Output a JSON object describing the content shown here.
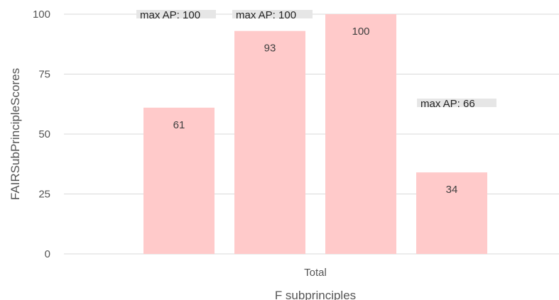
{
  "chart_data": {
    "type": "bar",
    "categories": [
      "Total"
    ],
    "series": [
      {
        "values": [
          61
        ]
      },
      {
        "values": [
          93
        ]
      },
      {
        "values": [
          100
        ]
      },
      {
        "values": [
          34
        ]
      }
    ],
    "bar_value_labels": [
      "61",
      "93",
      "100",
      "34"
    ],
    "annotations": [
      "max AP: 100",
      "max AP: 100",
      "",
      "max AP: 66"
    ],
    "xlabel": "F subprinciples",
    "ylabel": "FAIRSubPrincipleScores",
    "ylim": [
      0,
      100
    ],
    "yticks": [
      0,
      25,
      50,
      75,
      100
    ],
    "grid": true,
    "legend": "none",
    "colors": {
      "bar": "#ffcaca",
      "grid": "#d9d9d9",
      "annotation_bg": "#e6e6e6"
    }
  }
}
